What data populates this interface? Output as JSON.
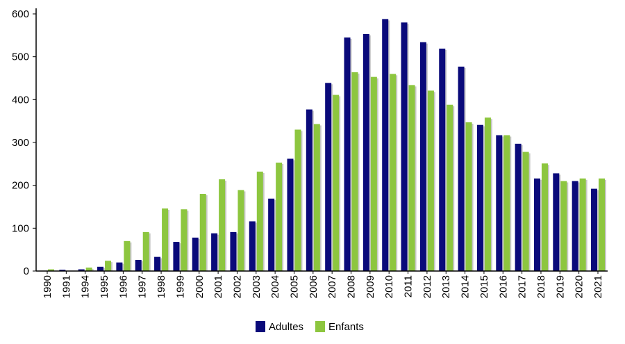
{
  "chart_data": {
    "type": "bar",
    "title": "",
    "xlabel": "",
    "ylabel": "",
    "categories": [
      "1990",
      "1991",
      "1994",
      "1995",
      "1996",
      "1997",
      "1998",
      "1999",
      "2000",
      "2001",
      "2002",
      "2003",
      "2004",
      "2005",
      "2006",
      "2007",
      "2008",
      "2009",
      "2010",
      "2011",
      "2012",
      "2013",
      "2014",
      "2015",
      "2016",
      "2017",
      "2018",
      "2019",
      "2020",
      "2021"
    ],
    "series": [
      {
        "name": "Adultes",
        "color": "#0a0a7a",
        "values": [
          0,
          3,
          4,
          10,
          20,
          26,
          33,
          68,
          78,
          88,
          91,
          116,
          169,
          262,
          377,
          439,
          545,
          553,
          588,
          580,
          534,
          519,
          477,
          341,
          317,
          297,
          216,
          228,
          210,
          192
        ]
      },
      {
        "name": "Enfants",
        "color": "#8dc63f",
        "values": [
          4,
          0,
          8,
          24,
          70,
          91,
          146,
          144,
          180,
          214,
          189,
          232,
          253,
          330,
          343,
          411,
          464,
          453,
          460,
          434,
          421,
          388,
          347,
          358,
          317,
          278,
          251,
          210,
          216,
          216
        ]
      }
    ],
    "ylim": [
      0,
      600
    ],
    "yticks": [
      0,
      100,
      200,
      300,
      400,
      500,
      600
    ],
    "grid": false,
    "legend_position": "bottom-center"
  }
}
